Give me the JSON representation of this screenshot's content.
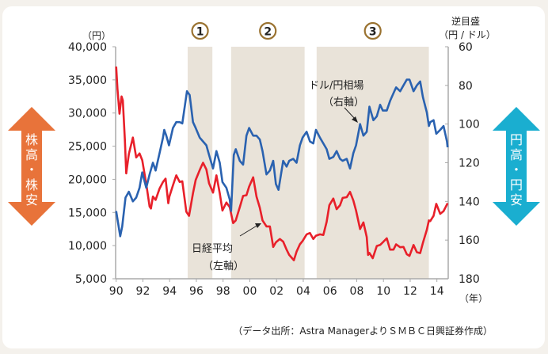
{
  "chart_data": {
    "type": "line",
    "xlabel_unit": "（年）",
    "left_axis": {
      "unit": "（円）",
      "ylim": [
        5000,
        40000
      ],
      "ticks": [
        "5,000",
        "10,000",
        "15,000",
        "20,000",
        "25,000",
        "30,000",
        "35,000",
        "40,000"
      ],
      "tick_values": [
        5000,
        10000,
        15000,
        20000,
        25000,
        30000,
        35000,
        40000
      ]
    },
    "right_axis": {
      "title": "逆目盛",
      "unit": "（円 / ドル）",
      "ylim": [
        60,
        180
      ],
      "inverted": true,
      "ticks": [
        "60",
        "80",
        "100",
        "120",
        "140",
        "160",
        "180"
      ],
      "tick_values": [
        60,
        80,
        100,
        120,
        140,
        160,
        180
      ]
    },
    "x_ticks": [
      "90",
      "92",
      "94",
      "96",
      "98",
      "00",
      "02",
      "04",
      "06",
      "08",
      "10",
      "12",
      "14"
    ],
    "x_tick_values": [
      1990,
      1992,
      1994,
      1996,
      1998,
      2000,
      2002,
      2004,
      2006,
      2008,
      2010,
      2012,
      2014
    ],
    "xlim": [
      1990,
      2014.8
    ],
    "grid": false,
    "shaded_periods": [
      {
        "label": "1",
        "start": 1995.35,
        "end": 1997.2
      },
      {
        "label": "2",
        "start": 1998.6,
        "end": 2004.1
      },
      {
        "label": "3",
        "start": 2005.0,
        "end": 2013.4
      }
    ],
    "series": [
      {
        "name": "日経平均",
        "axis_note": "（左軸）",
        "axis": "left",
        "color": "#e8202a",
        "x": [
          1990.0,
          1990.1,
          1990.25,
          1990.4,
          1990.5,
          1990.65,
          1990.75,
          1990.95,
          1991.25,
          1991.5,
          1991.75,
          1991.95,
          1992.25,
          1992.5,
          1992.6,
          1992.75,
          1992.95,
          1993.25,
          1993.5,
          1993.7,
          1993.9,
          1993.98,
          1994.25,
          1994.5,
          1994.75,
          1994.95,
          1995.25,
          1995.45,
          1995.75,
          1995.95,
          1996.25,
          1996.5,
          1996.75,
          1996.95,
          1997.25,
          1997.5,
          1997.75,
          1997.95,
          1998.25,
          1998.5,
          1998.75,
          1998.95,
          1999.25,
          1999.5,
          1999.75,
          1999.95,
          2000.25,
          2000.5,
          2000.75,
          2000.95,
          2001.25,
          2001.5,
          2001.75,
          2001.95,
          2002.25,
          2002.5,
          2002.75,
          2002.95,
          2003.3,
          2003.5,
          2003.75,
          2003.95,
          2004.25,
          2004.5,
          2004.75,
          2004.95,
          2005.25,
          2005.5,
          2005.75,
          2005.95,
          2006.25,
          2006.5,
          2006.75,
          2006.95,
          2007.25,
          2007.5,
          2007.75,
          2007.95,
          2008.25,
          2008.5,
          2008.75,
          2008.85,
          2008.95,
          2009.2,
          2009.5,
          2009.75,
          2009.95,
          2010.25,
          2010.5,
          2010.75,
          2010.95,
          2011.25,
          2011.5,
          2011.75,
          2011.95,
          2012.25,
          2012.5,
          2012.75,
          2012.95,
          2013.25,
          2013.4,
          2013.5,
          2013.75,
          2013.95,
          2014.25,
          2014.5,
          2014.75,
          2014.8
        ],
        "values": [
          37000,
          33500,
          29900,
          32500,
          31900,
          25900,
          20900,
          23800,
          26300,
          23300,
          23900,
          22900,
          19300,
          15900,
          15600,
          17400,
          16900,
          18600,
          19600,
          20100,
          16400,
          17400,
          19100,
          20600,
          19600,
          19700,
          15100,
          14500,
          17900,
          19900,
          21400,
          22500,
          21500,
          19400,
          18000,
          20600,
          17900,
          15300,
          16500,
          15800,
          13400,
          13800,
          15800,
          17500,
          17600,
          18900,
          20300,
          17400,
          15700,
          13800,
          12900,
          12900,
          9800,
          10500,
          11000,
          10600,
          9400,
          8600,
          7800,
          9100,
          10200,
          10700,
          11700,
          11900,
          11000,
          11500,
          11700,
          11600,
          13600,
          16100,
          17100,
          15500,
          16100,
          17200,
          17300,
          18100,
          16800,
          15300,
          12500,
          13500,
          11300,
          8600,
          8900,
          8100,
          9950,
          10100,
          10500,
          11100,
          9400,
          9400,
          10200,
          9750,
          9800,
          8700,
          8450,
          10100,
          9000,
          8870,
          10400,
          12400,
          13800,
          13700,
          14500,
          16300,
          14800,
          15200,
          16200,
          16400
        ]
      },
      {
        "name": "ドル/円相場",
        "axis_note": "（右軸）",
        "axis": "right",
        "color": "#2a62b0",
        "x": [
          1990.0,
          1990.3,
          1990.45,
          1990.7,
          1990.95,
          1991.25,
          1991.5,
          1991.75,
          1991.95,
          1992.25,
          1992.5,
          1992.75,
          1992.95,
          1993.25,
          1993.5,
          1993.6,
          1993.75,
          1993.95,
          1994.25,
          1994.5,
          1994.75,
          1994.95,
          1995.3,
          1995.5,
          1995.75,
          1995.95,
          1996.25,
          1996.5,
          1996.75,
          1996.95,
          1997.25,
          1997.5,
          1997.75,
          1997.95,
          1998.25,
          1998.5,
          1998.6,
          1998.8,
          1998.95,
          1999.25,
          1999.5,
          1999.75,
          1999.95,
          2000.25,
          2000.5,
          2000.75,
          2000.95,
          2001.25,
          2001.5,
          2001.75,
          2001.95,
          2002.15,
          2002.5,
          2002.75,
          2002.95,
          2003.25,
          2003.5,
          2003.75,
          2003.95,
          2004.25,
          2004.5,
          2004.75,
          2004.95,
          2005.25,
          2005.5,
          2005.75,
          2005.95,
          2006.25,
          2006.5,
          2006.75,
          2006.95,
          2007.25,
          2007.5,
          2007.75,
          2007.95,
          2008.25,
          2008.5,
          2008.75,
          2008.95,
          2009.25,
          2009.5,
          2009.75,
          2009.95,
          2010.25,
          2010.5,
          2010.75,
          2010.95,
          2011.25,
          2011.5,
          2011.75,
          2011.95,
          2012.25,
          2012.5,
          2012.75,
          2012.95,
          2013.25,
          2013.4,
          2013.5,
          2013.75,
          2013.95,
          2014.25,
          2014.5,
          2014.75,
          2014.8
        ],
        "values": [
          145,
          158,
          153,
          138,
          135,
          140,
          138,
          133,
          125,
          133,
          126,
          120,
          124,
          115,
          107,
          103,
          106,
          111,
          102,
          99,
          99,
          99.7,
          83,
          85,
          99,
          102,
          107,
          109,
          111,
          116,
          123,
          114,
          120,
          130,
          133,
          139,
          145,
          116,
          113,
          119,
          121,
          106,
          102,
          106,
          106,
          108,
          114,
          126,
          124,
          119,
          131,
          134,
          119,
          122,
          119,
          118,
          120,
          111,
          107,
          104,
          109,
          110,
          103,
          107,
          110,
          113,
          118,
          117,
          114,
          118,
          119,
          118,
          123,
          115,
          111,
          100,
          106,
          104,
          91,
          98,
          96,
          90,
          93,
          93,
          88,
          84,
          81,
          83,
          80,
          77,
          77,
          83,
          80,
          78,
          86,
          94,
          101,
          99,
          98,
          105,
          103,
          101,
          109,
          112
        ]
      }
    ]
  },
  "annotations": {
    "left_arrow": {
      "text": [
        "株",
        "高",
        "・",
        "株",
        "安"
      ],
      "color": "#e8733a"
    },
    "right_arrow": {
      "text": [
        "円",
        "高",
        "・",
        "円",
        "安"
      ],
      "color": "#1aaed0"
    },
    "fx_label": "ドル/円相場",
    "fx_note": "（右軸）",
    "nikkei_label": "日経平均",
    "nikkei_note": "（左軸）",
    "period_labels": [
      "1",
      "2",
      "3"
    ],
    "period_color": "#9a7230",
    "source": "（データ出所：Astra ManagerよりＳＭＢＣ日興証券作成）"
  }
}
